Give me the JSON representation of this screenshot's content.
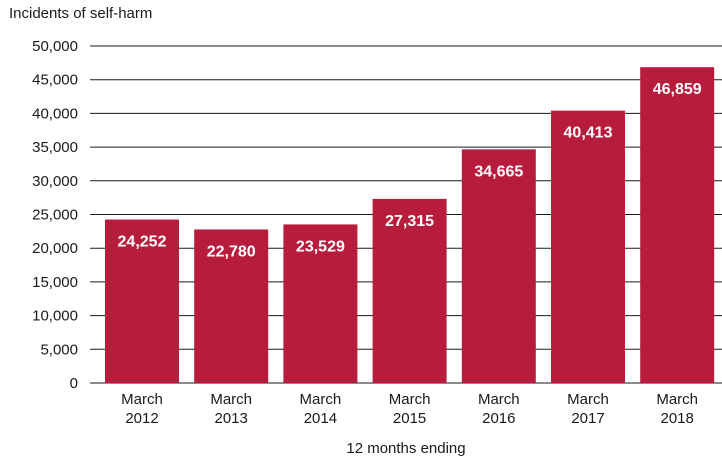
{
  "chart_data": {
    "type": "bar",
    "ylabel": "Incidents of self-harm",
    "xlabel": "12 months ending",
    "categories": [
      [
        "March",
        "2012"
      ],
      [
        "March",
        "2013"
      ],
      [
        "March",
        "2014"
      ],
      [
        "March",
        "2015"
      ],
      [
        "March",
        "2016"
      ],
      [
        "March",
        "2017"
      ],
      [
        "March",
        "2018"
      ]
    ],
    "values": [
      24252,
      22780,
      23529,
      27315,
      34665,
      40413,
      46859
    ],
    "value_labels": [
      "24,252",
      "22,780",
      "23,529",
      "27,315",
      "34,665",
      "40,413",
      "46,859"
    ],
    "ylim": [
      0,
      50000
    ],
    "yticks": [
      0,
      5000,
      10000,
      15000,
      20000,
      25000,
      30000,
      35000,
      40000,
      45000,
      50000
    ],
    "ytick_labels": [
      "0",
      "5,000",
      "10,000",
      "15,000",
      "20,000",
      "25,000",
      "30,000",
      "35,000",
      "40,000",
      "45,000",
      "50,000"
    ],
    "grid": "horizontal",
    "bar_color": "#b81c3c",
    "label_color": "#ffffff"
  }
}
